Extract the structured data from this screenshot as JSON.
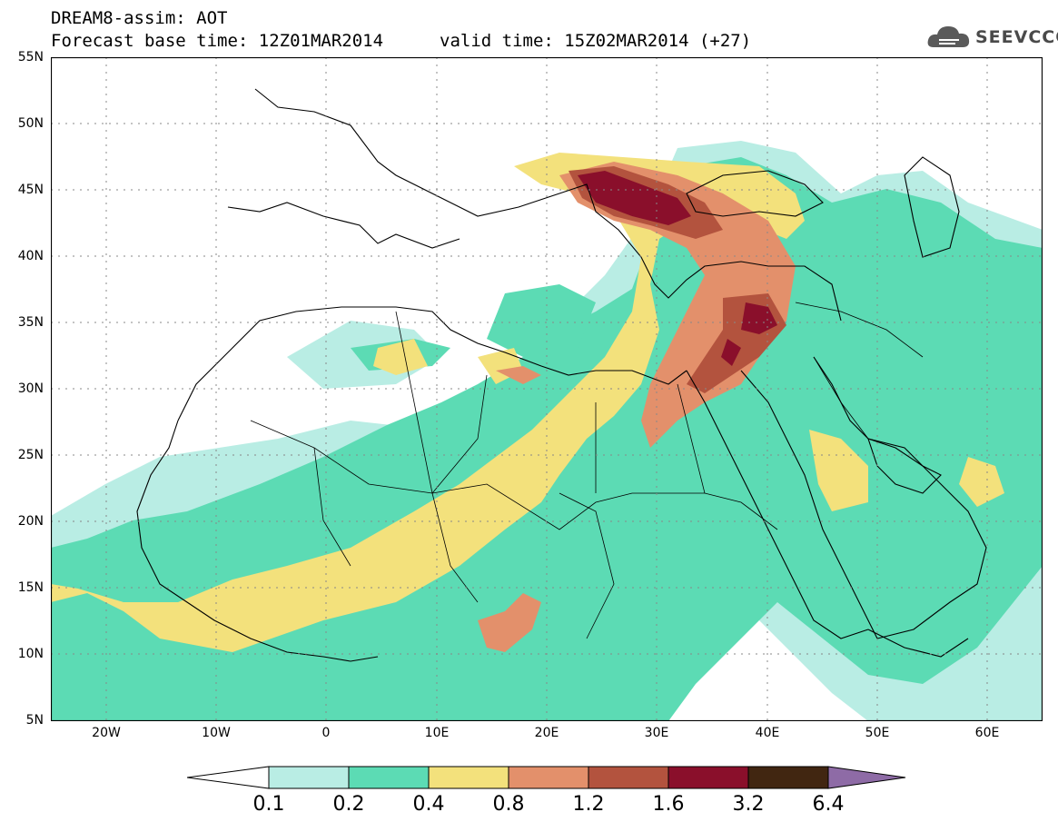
{
  "header": {
    "title": "DREAM8-assim: AOT",
    "base_time": "Forecast base time: 12Z01MAR2014",
    "valid_time": "valid time: 15Z02MAR2014 (+27)",
    "logo": "SEEVCCC"
  },
  "map": {
    "latitude_labels": [
      "55N",
      "50N",
      "45N",
      "40N",
      "35N",
      "30N",
      "25N",
      "20N",
      "15N",
      "10N",
      "5N"
    ],
    "longitude_labels": [
      "20W",
      "10W",
      "0",
      "10E",
      "20E",
      "30E",
      "40E",
      "50E",
      "60E"
    ],
    "lat_range": [
      5,
      55
    ],
    "lon_range": [
      -25,
      65
    ],
    "grid": "dotted",
    "colors": {
      "ocean": "#ffffff",
      "coast": "#000000"
    }
  },
  "legend": {
    "labels": [
      "0.1",
      "0.2",
      "0.4",
      "0.8",
      "1.2",
      "1.6",
      "3.2",
      "6.4"
    ],
    "colors": [
      "#ffffff",
      "#b9ede4",
      "#5cdbb4",
      "#f3e17c",
      "#e3906b",
      "#b3533e",
      "#8a0f2b",
      "#412611",
      "#8e6ba6"
    ]
  }
}
